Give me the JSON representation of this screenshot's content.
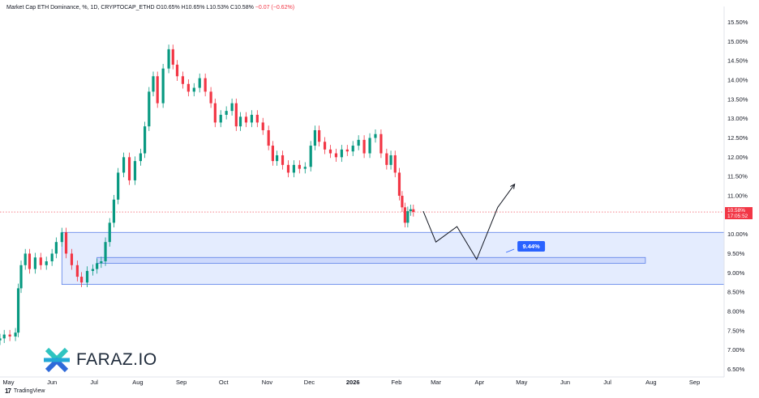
{
  "legend": {
    "title": "Market Cap ETH Dominance, %, 1D, CRYPTOCAP_ETHD",
    "open": "O10.65%",
    "high": "H10.65%",
    "low": "L10.53%",
    "close": "C10.58%",
    "change": "−0.07 (−0.62%)"
  },
  "price_badge": {
    "value": "10.58%",
    "countdown": "17:05:52"
  },
  "annotation_badge": "9.44%",
  "footer": {
    "brand": "TradingView",
    "watermark": "FARAZ.IO"
  },
  "colors": {
    "up": "#089981",
    "down": "#f23645",
    "zone_fill": "#dbe5fd",
    "zone_stroke": "#5b7fe8",
    "badge": "#2962ff"
  },
  "chart_data": {
    "type": "candlestick",
    "title": "Market Cap ETH Dominance, %, 1D, CRYPTOCAP_ETHD",
    "y_unit": "%",
    "ylim": [
      6.3,
      15.7
    ],
    "y_ticks": [
      "15.50%",
      "15.00%",
      "14.50%",
      "14.00%",
      "13.50%",
      "13.00%",
      "12.50%",
      "12.00%",
      "11.50%",
      "11.00%",
      "10.50%",
      "10.00%",
      "9.50%",
      "9.00%",
      "8.50%",
      "8.00%",
      "7.50%",
      "7.00%",
      "6.50%"
    ],
    "x_ticks": [
      "May",
      "Jun",
      "Jul",
      "Aug",
      "Sep",
      "Oct",
      "Nov",
      "Dec",
      "2026",
      "Feb",
      "Mar",
      "Apr",
      "May",
      "Jun",
      "Jul",
      "Aug",
      "Sep"
    ],
    "x_range": [
      "2025-04-25",
      "2026-09-22"
    ],
    "close_series": [
      [
        "2025-04-25",
        7.3
      ],
      [
        "2025-04-28",
        7.4
      ],
      [
        "2025-05-02",
        7.35
      ],
      [
        "2025-05-06",
        7.45
      ],
      [
        "2025-05-08",
        8.6
      ],
      [
        "2025-05-10",
        9.2
      ],
      [
        "2025-05-13",
        9.5
      ],
      [
        "2025-05-16",
        9.1
      ],
      [
        "2025-05-20",
        9.4
      ],
      [
        "2025-05-24",
        9.2
      ],
      [
        "2025-05-28",
        9.3
      ],
      [
        "2025-06-01",
        9.5
      ],
      [
        "2025-06-04",
        9.8
      ],
      [
        "2025-06-08",
        10.05
      ],
      [
        "2025-06-11",
        9.5
      ],
      [
        "2025-06-15",
        9.2
      ],
      [
        "2025-06-19",
        8.9
      ],
      [
        "2025-06-22",
        8.75
      ],
      [
        "2025-06-26",
        9.05
      ],
      [
        "2025-06-30",
        9.1
      ],
      [
        "2025-07-03",
        9.25
      ],
      [
        "2025-07-06",
        9.3
      ],
      [
        "2025-07-09",
        9.8
      ],
      [
        "2025-07-12",
        10.3
      ],
      [
        "2025-07-15",
        10.9
      ],
      [
        "2025-07-18",
        11.6
      ],
      [
        "2025-07-22",
        12.0
      ],
      [
        "2025-07-26",
        11.4
      ],
      [
        "2025-07-30",
        11.9
      ],
      [
        "2025-08-03",
        12.1
      ],
      [
        "2025-08-06",
        12.8
      ],
      [
        "2025-08-09",
        13.7
      ],
      [
        "2025-08-12",
        14.1
      ],
      [
        "2025-08-15",
        13.4
      ],
      [
        "2025-08-19",
        14.3
      ],
      [
        "2025-08-23",
        14.8
      ],
      [
        "2025-08-26",
        14.4
      ],
      [
        "2025-08-29",
        14.1
      ],
      [
        "2025-09-02",
        13.9
      ],
      [
        "2025-09-06",
        13.7
      ],
      [
        "2025-09-10",
        13.8
      ],
      [
        "2025-09-14",
        14.05
      ],
      [
        "2025-09-18",
        13.7
      ],
      [
        "2025-09-22",
        13.4
      ],
      [
        "2025-09-25",
        12.9
      ],
      [
        "2025-09-29",
        13.1
      ],
      [
        "2025-10-03",
        13.2
      ],
      [
        "2025-10-07",
        13.4
      ],
      [
        "2025-10-10",
        12.8
      ],
      [
        "2025-10-13",
        13.05
      ],
      [
        "2025-10-17",
        12.9
      ],
      [
        "2025-10-21",
        13.1
      ],
      [
        "2025-10-25",
        12.9
      ],
      [
        "2025-10-29",
        12.7
      ],
      [
        "2025-11-02",
        12.3
      ],
      [
        "2025-11-05",
        11.9
      ],
      [
        "2025-11-08",
        12.05
      ],
      [
        "2025-11-12",
        11.8
      ],
      [
        "2025-11-16",
        11.6
      ],
      [
        "2025-11-20",
        11.8
      ],
      [
        "2025-11-24",
        11.7
      ],
      [
        "2025-11-28",
        11.75
      ],
      [
        "2025-12-02",
        12.3
      ],
      [
        "2025-12-05",
        12.7
      ],
      [
        "2025-12-08",
        12.4
      ],
      [
        "2025-12-12",
        12.2
      ],
      [
        "2025-12-16",
        12.1
      ],
      [
        "2025-12-20",
        12.0
      ],
      [
        "2025-12-24",
        12.2
      ],
      [
        "2025-12-28",
        12.15
      ],
      [
        "2026-01-01",
        12.3
      ],
      [
        "2026-01-05",
        12.45
      ],
      [
        "2026-01-09",
        12.1
      ],
      [
        "2026-01-13",
        12.5
      ],
      [
        "2026-01-17",
        12.6
      ],
      [
        "2026-01-21",
        12.1
      ],
      [
        "2026-01-25",
        11.8
      ],
      [
        "2026-01-28",
        12.05
      ],
      [
        "2026-01-31",
        11.6
      ],
      [
        "2026-02-03",
        11.0
      ],
      [
        "2026-02-05",
        10.7
      ],
      [
        "2026-02-07",
        10.3
      ],
      [
        "2026-02-09",
        10.6
      ],
      [
        "2026-02-11",
        10.65
      ],
      [
        "2026-02-13",
        10.58
      ]
    ],
    "last_price": 10.58,
    "demand_zone": {
      "from_date": "2025-06-08",
      "to_date": "2026-09-22",
      "from": 8.7,
      "to": 10.05
    },
    "inner_zone": {
      "from_date": "2025-07-03",
      "to_date": "2026-07-28",
      "from": 9.25,
      "to": 9.4
    },
    "annotation": {
      "label": "9.44%",
      "date": "2026-04-28",
      "value": 9.7
    },
    "projection_path": [
      [
        "2026-02-20",
        10.6
      ],
      [
        "2026-03-01",
        9.8
      ],
      [
        "2026-03-16",
        10.2
      ],
      [
        "2026-03-30",
        9.35
      ],
      [
        "2026-04-14",
        10.7
      ],
      [
        "2026-04-26",
        11.3
      ]
    ]
  }
}
